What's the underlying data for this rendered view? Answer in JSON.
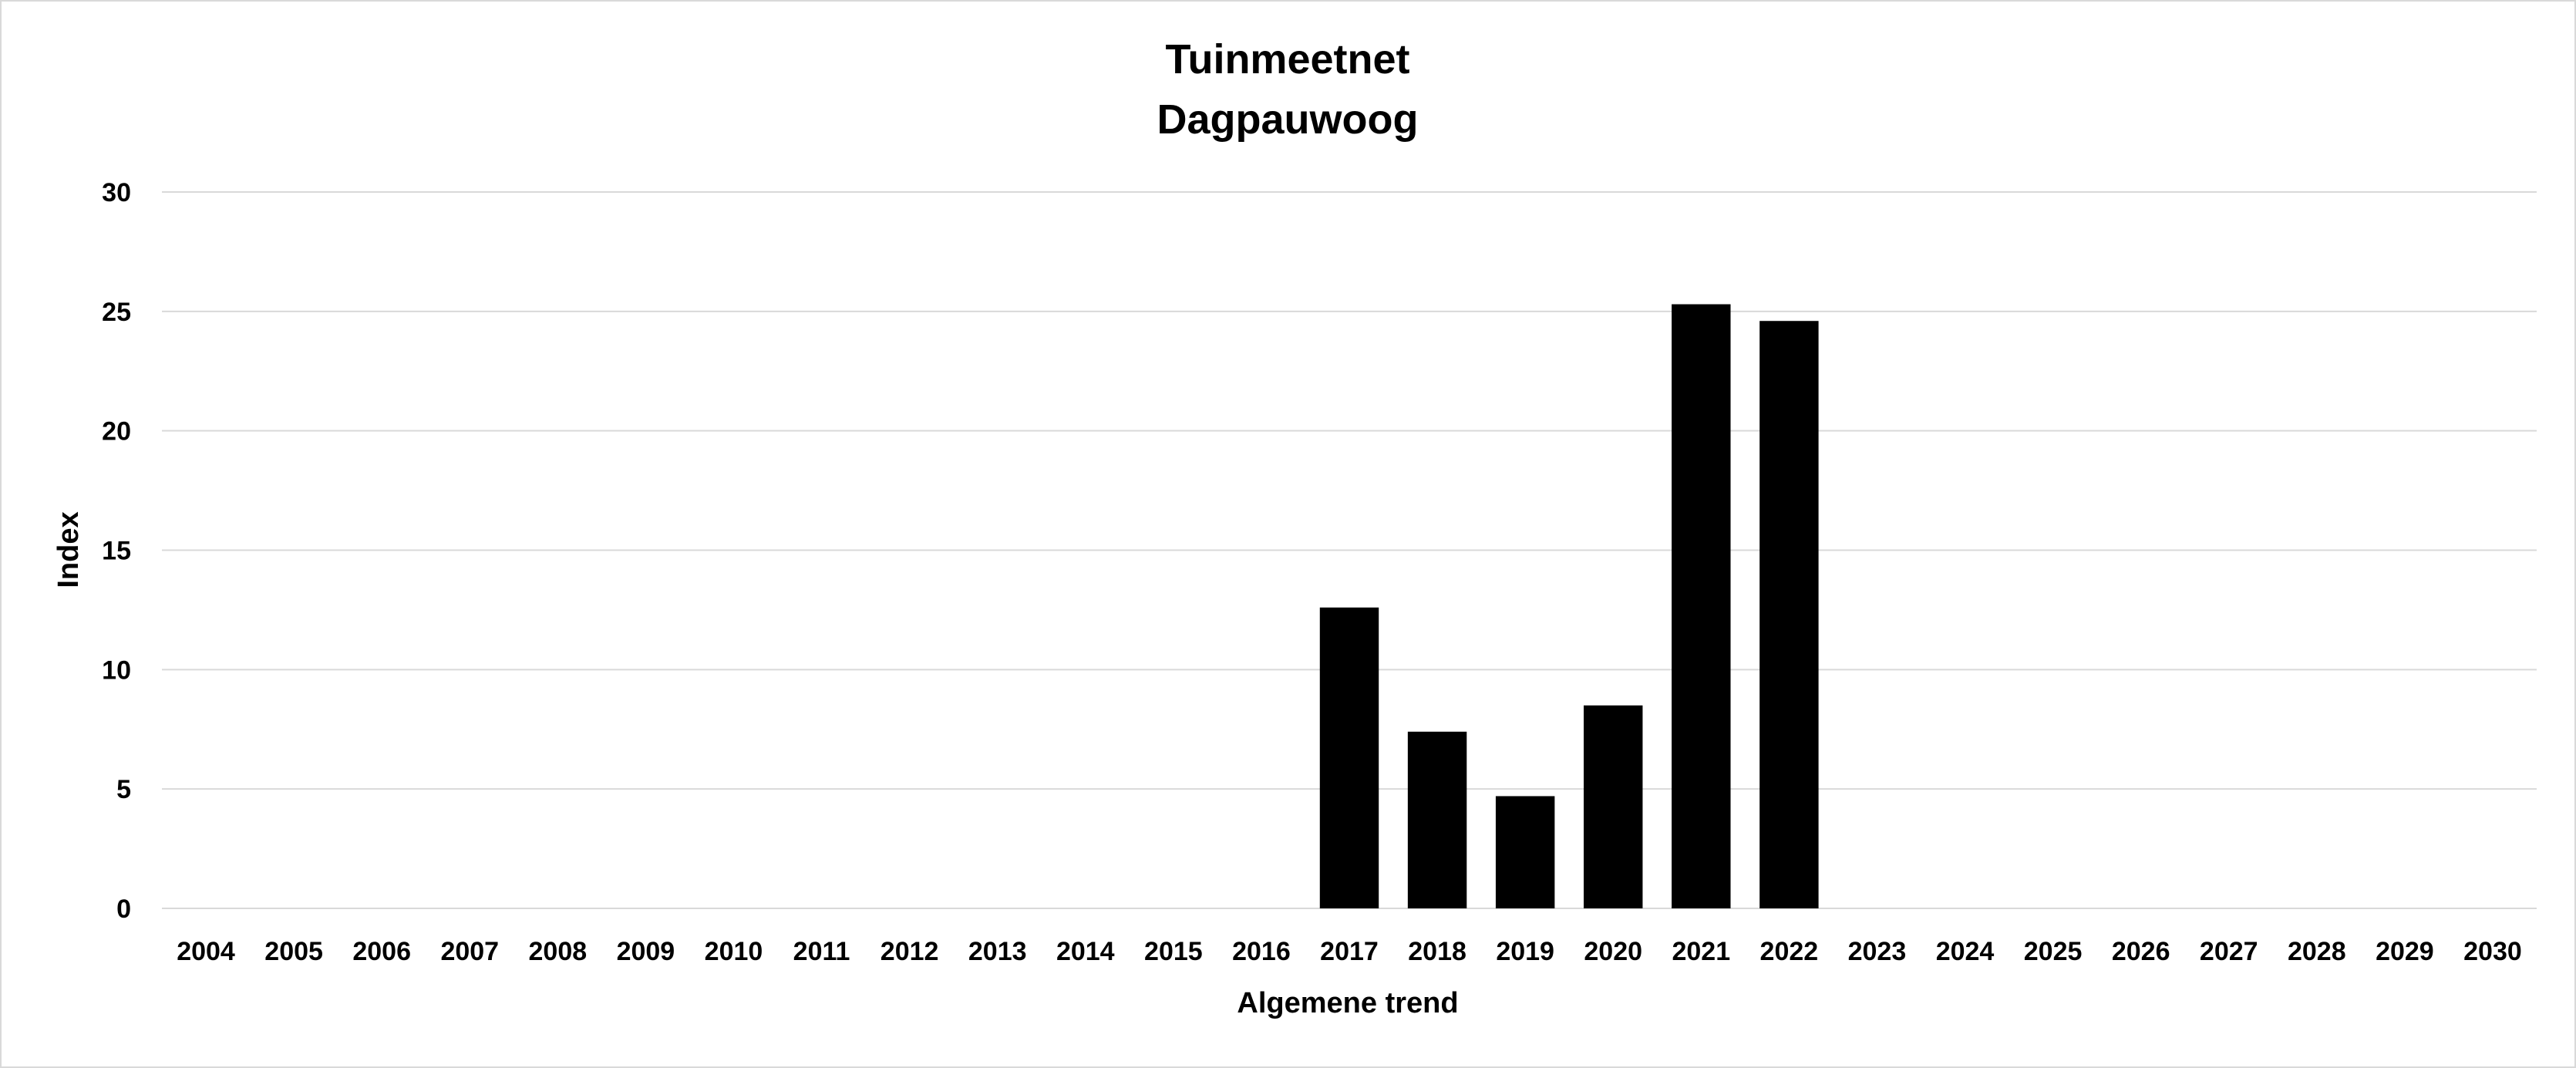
{
  "chart_data": {
    "type": "bar",
    "title": "Tuinmeetnet",
    "subtitle": "Dagpauwoog",
    "xlabel": "Algemene trend",
    "ylabel": "Index",
    "ylim": [
      0,
      30
    ],
    "yticks": [
      0,
      5,
      10,
      15,
      20,
      25,
      30
    ],
    "grid": true,
    "legend": "none",
    "bar_color": "#000000",
    "grid_color": "#d9d9d9",
    "categories": [
      "2004",
      "2005",
      "2006",
      "2007",
      "2008",
      "2009",
      "2010",
      "2011",
      "2012",
      "2013",
      "2014",
      "2015",
      "2016",
      "2017",
      "2018",
      "2019",
      "2020",
      "2021",
      "2022",
      "2023",
      "2024",
      "2025",
      "2026",
      "2027",
      "2028",
      "2029",
      "2030"
    ],
    "values": [
      null,
      null,
      null,
      null,
      null,
      null,
      null,
      null,
      null,
      null,
      null,
      null,
      null,
      12.6,
      7.4,
      4.7,
      8.5,
      25.3,
      24.6,
      null,
      null,
      null,
      null,
      null,
      null,
      null,
      null
    ]
  }
}
